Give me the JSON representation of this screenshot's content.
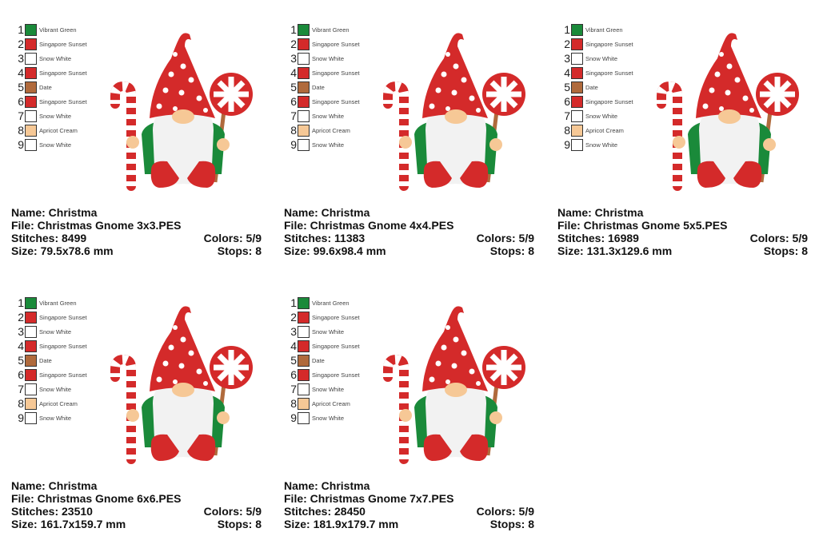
{
  "palette": [
    {
      "num": "1",
      "name": "Vibrant Green",
      "color": "#1a8a3a"
    },
    {
      "num": "2",
      "name": "Singapore Sunset",
      "color": "#d42a2a"
    },
    {
      "num": "3",
      "name": "Snow White",
      "color": "#ffffff"
    },
    {
      "num": "4",
      "name": "Singapore Sunset",
      "color": "#d42a2a"
    },
    {
      "num": "5",
      "name": "Date",
      "color": "#b06a3c"
    },
    {
      "num": "6",
      "name": "Singapore Sunset",
      "color": "#d42a2a"
    },
    {
      "num": "7",
      "name": "Snow White",
      "color": "#ffffff"
    },
    {
      "num": "8",
      "name": "Apricot Cream",
      "color": "#f6c896"
    },
    {
      "num": "9",
      "name": "Snow White",
      "color": "#ffffff"
    }
  ],
  "cards": [
    {
      "name": "Name: Christma",
      "file": "File: Christmas Gnome 3x3.PES",
      "stitches": "Stitches: 8499",
      "colors": "Colors: 5/9",
      "size": "Size: 79.5x78.6 mm",
      "stops": "Stops: 8"
    },
    {
      "name": "Name: Christma",
      "file": "File: Christmas Gnome 4x4.PES",
      "stitches": "Stitches: 11383",
      "colors": "Colors: 5/9",
      "size": "Size: 99.6x98.4 mm",
      "stops": "Stops: 8"
    },
    {
      "name": "Name: Christma",
      "file": "File: Christmas Gnome 5x5.PES",
      "stitches": "Stitches: 16989",
      "colors": "Colors: 5/9",
      "size": "Size: 131.3x129.6 mm",
      "stops": "Stops: 8"
    },
    {
      "name": "Name: Christma",
      "file": "File: Christmas Gnome 6x6.PES",
      "stitches": "Stitches: 23510",
      "colors": "Colors: 5/9",
      "size": "Size: 161.7x159.7 mm",
      "stops": "Stops: 8"
    },
    {
      "name": "Name: Christma",
      "file": "File: Christmas Gnome 7x7.PES",
      "stitches": "Stitches: 28450",
      "colors": "Colors: 5/9",
      "size": "Size: 181.9x179.7 mm",
      "stops": "Stops: 8"
    }
  ]
}
